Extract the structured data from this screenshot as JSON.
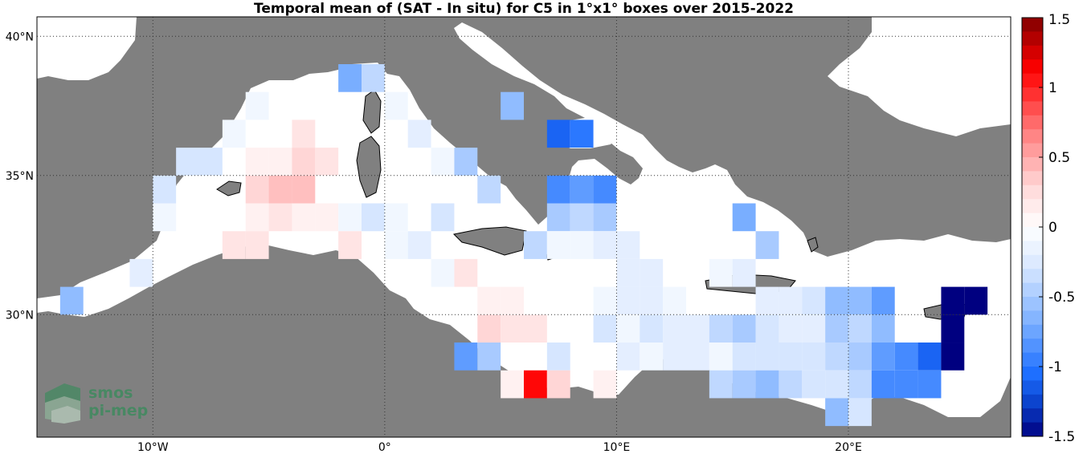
{
  "title": "Temporal mean of (SAT - In situ) for C5 in 1°x1° boxes over 2015-2022",
  "map": {
    "lon_range": [
      -15,
      27
    ],
    "lat_range": [
      25.6,
      40.7
    ],
    "lon_ticks": [
      {
        "value": -10,
        "label": "10°W"
      },
      {
        "value": 0,
        "label": "0°"
      },
      {
        "value": 10,
        "label": "10°E"
      },
      {
        "value": 20,
        "label": "20°E"
      }
    ],
    "lat_ticks": [
      {
        "value": 40,
        "label": "40°N"
      },
      {
        "value": 35,
        "label": "35°N"
      },
      {
        "value": 30,
        "label": "30°N"
      }
    ],
    "land_color": "#808080",
    "sea_color": "#ffffff"
  },
  "colorbar": {
    "min": -1.5,
    "max": 1.5,
    "tick_labels": [
      "1.5",
      "1",
      "0.5",
      "0",
      "-0.5",
      "-1",
      "-1.5"
    ],
    "tick_values": [
      1.5,
      1,
      0.5,
      0,
      -0.5,
      -1,
      -1.5
    ],
    "steps": 30,
    "colors": {
      "min": "#000080",
      "mid": "#ffffff",
      "max": "#800000"
    }
  },
  "logo": {
    "line1": "smos",
    "line2": "pi-mep"
  },
  "chart_data": {
    "type": "heatmap",
    "title": "Temporal mean of (SAT - In situ) for C5 in 1°x1° boxes over 2015-2022",
    "xlabel": "",
    "ylabel": "",
    "grid": "dotted at 10° lon / 5° lat",
    "boxes": [
      {
        "lon": -2,
        "lat": 38,
        "value": -0.7
      },
      {
        "lon": -1,
        "lat": 38,
        "value": -0.4
      },
      {
        "lon": -6,
        "lat": 37,
        "value": -0.1
      },
      {
        "lon": 0,
        "lat": 37,
        "value": -0.1
      },
      {
        "lon": 5,
        "lat": 37,
        "value": -0.6
      },
      {
        "lon": -7,
        "lat": 36,
        "value": -0.1
      },
      {
        "lon": -4,
        "lat": 36,
        "value": 0.2
      },
      {
        "lon": 1,
        "lat": 36,
        "value": -0.2
      },
      {
        "lon": 7,
        "lat": 36,
        "value": -1.1
      },
      {
        "lon": 8,
        "lat": 36,
        "value": -1.0
      },
      {
        "lon": -9,
        "lat": 35,
        "value": -0.3
      },
      {
        "lon": -8,
        "lat": 35,
        "value": -0.3
      },
      {
        "lon": -6,
        "lat": 35,
        "value": 0.1
      },
      {
        "lon": -5,
        "lat": 35,
        "value": 0.1
      },
      {
        "lon": -4,
        "lat": 35,
        "value": 0.3
      },
      {
        "lon": -3,
        "lat": 35,
        "value": 0.2
      },
      {
        "lon": 2,
        "lat": 35,
        "value": -0.1
      },
      {
        "lon": 3,
        "lat": 35,
        "value": -0.5
      },
      {
        "lon": -10,
        "lat": 34,
        "value": -0.3
      },
      {
        "lon": -6,
        "lat": 34,
        "value": 0.3
      },
      {
        "lon": -5,
        "lat": 34,
        "value": 0.4
      },
      {
        "lon": -4,
        "lat": 34,
        "value": 0.4
      },
      {
        "lon": 4,
        "lat": 34,
        "value": -0.4
      },
      {
        "lon": 7,
        "lat": 34,
        "value": -0.9
      },
      {
        "lon": 8,
        "lat": 34,
        "value": -0.8
      },
      {
        "lon": 9,
        "lat": 34,
        "value": -0.9
      },
      {
        "lon": -10,
        "lat": 33,
        "value": -0.1
      },
      {
        "lon": -6,
        "lat": 33,
        "value": 0.1
      },
      {
        "lon": -5,
        "lat": 33,
        "value": 0.2
      },
      {
        "lon": -4,
        "lat": 33,
        "value": 0.1
      },
      {
        "lon": -3,
        "lat": 33,
        "value": 0.1
      },
      {
        "lon": -2,
        "lat": 33,
        "value": -0.1
      },
      {
        "lon": -1,
        "lat": 33,
        "value": -0.3
      },
      {
        "lon": 0,
        "lat": 33,
        "value": -0.1
      },
      {
        "lon": 2,
        "lat": 33,
        "value": -0.3
      },
      {
        "lon": 7,
        "lat": 33,
        "value": -0.5
      },
      {
        "lon": 8,
        "lat": 33,
        "value": -0.4
      },
      {
        "lon": 9,
        "lat": 33,
        "value": -0.5
      },
      {
        "lon": 15,
        "lat": 33,
        "value": -0.7
      },
      {
        "lon": -7,
        "lat": 32,
        "value": 0.2
      },
      {
        "lon": -6,
        "lat": 32,
        "value": 0.2
      },
      {
        "lon": -2,
        "lat": 32,
        "value": 0.2
      },
      {
        "lon": 0,
        "lat": 32,
        "value": -0.1
      },
      {
        "lon": 1,
        "lat": 32,
        "value": -0.2
      },
      {
        "lon": 6,
        "lat": 32,
        "value": -0.4
      },
      {
        "lon": 7,
        "lat": 32,
        "value": -0.1
      },
      {
        "lon": 8,
        "lat": 32,
        "value": -0.1
      },
      {
        "lon": 9,
        "lat": 32,
        "value": -0.2
      },
      {
        "lon": 10,
        "lat": 32,
        "value": -0.2
      },
      {
        "lon": 16,
        "lat": 32,
        "value": -0.5
      },
      {
        "lon": -11,
        "lat": 31,
        "value": -0.2
      },
      {
        "lon": 2,
        "lat": 31,
        "value": -0.1
      },
      {
        "lon": 3,
        "lat": 31,
        "value": 0.2
      },
      {
        "lon": 10,
        "lat": 31,
        "value": -0.2
      },
      {
        "lon": 11,
        "lat": 31,
        "value": -0.2
      },
      {
        "lon": 14,
        "lat": 31,
        "value": -0.1
      },
      {
        "lon": 15,
        "lat": 31,
        "value": -0.2
      },
      {
        "lon": -14,
        "lat": 30,
        "value": -0.6
      },
      {
        "lon": 4,
        "lat": 30,
        "value": 0.1
      },
      {
        "lon": 5,
        "lat": 30,
        "value": 0.1
      },
      {
        "lon": 9,
        "lat": 30,
        "value": -0.1
      },
      {
        "lon": 10,
        "lat": 30,
        "value": -0.2
      },
      {
        "lon": 11,
        "lat": 30,
        "value": -0.2
      },
      {
        "lon": 12,
        "lat": 30,
        "value": -0.1
      },
      {
        "lon": 16,
        "lat": 30,
        "value": -0.2
      },
      {
        "lon": 17,
        "lat": 30,
        "value": -0.2
      },
      {
        "lon": 18,
        "lat": 30,
        "value": -0.3
      },
      {
        "lon": 19,
        "lat": 30,
        "value": -0.6
      },
      {
        "lon": 20,
        "lat": 30,
        "value": -0.6
      },
      {
        "lon": 21,
        "lat": 30,
        "value": -0.8
      },
      {
        "lon": 24,
        "lat": 30,
        "value": -1.5
      },
      {
        "lon": 25,
        "lat": 30,
        "value": -1.5
      },
      {
        "lon": 4,
        "lat": 29,
        "value": 0.3
      },
      {
        "lon": 5,
        "lat": 29,
        "value": 0.2
      },
      {
        "lon": 6,
        "lat": 29,
        "value": 0.2
      },
      {
        "lon": 9,
        "lat": 29,
        "value": -0.3
      },
      {
        "lon": 10,
        "lat": 29,
        "value": -0.1
      },
      {
        "lon": 11,
        "lat": 29,
        "value": -0.3
      },
      {
        "lon": 12,
        "lat": 29,
        "value": -0.2
      },
      {
        "lon": 13,
        "lat": 29,
        "value": -0.2
      },
      {
        "lon": 14,
        "lat": 29,
        "value": -0.4
      },
      {
        "lon": 15,
        "lat": 29,
        "value": -0.5
      },
      {
        "lon": 16,
        "lat": 29,
        "value": -0.3
      },
      {
        "lon": 17,
        "lat": 29,
        "value": -0.2
      },
      {
        "lon": 18,
        "lat": 29,
        "value": -0.2
      },
      {
        "lon": 19,
        "lat": 29,
        "value": -0.5
      },
      {
        "lon": 20,
        "lat": 29,
        "value": -0.4
      },
      {
        "lon": 21,
        "lat": 29,
        "value": -0.6
      },
      {
        "lon": 24,
        "lat": 29,
        "value": -1.5
      },
      {
        "lon": 3,
        "lat": 28,
        "value": -0.8
      },
      {
        "lon": 4,
        "lat": 28,
        "value": -0.5
      },
      {
        "lon": 7,
        "lat": 28,
        "value": -0.3
      },
      {
        "lon": 10,
        "lat": 28,
        "value": -0.2
      },
      {
        "lon": 11,
        "lat": 28,
        "value": -0.1
      },
      {
        "lon": 12,
        "lat": 28,
        "value": -0.2
      },
      {
        "lon": 13,
        "lat": 28,
        "value": -0.2
      },
      {
        "lon": 14,
        "lat": 28,
        "value": -0.1
      },
      {
        "lon": 15,
        "lat": 28,
        "value": -0.3
      },
      {
        "lon": 16,
        "lat": 28,
        "value": -0.3
      },
      {
        "lon": 17,
        "lat": 28,
        "value": -0.3
      },
      {
        "lon": 18,
        "lat": 28,
        "value": -0.3
      },
      {
        "lon": 19,
        "lat": 28,
        "value": -0.4
      },
      {
        "lon": 20,
        "lat": 28,
        "value": -0.5
      },
      {
        "lon": 21,
        "lat": 28,
        "value": -0.8
      },
      {
        "lon": 22,
        "lat": 28,
        "value": -0.9
      },
      {
        "lon": 23,
        "lat": 28,
        "value": -1.1
      },
      {
        "lon": 24,
        "lat": 28,
        "value": -1.5
      },
      {
        "lon": 5,
        "lat": 27,
        "value": 0.1
      },
      {
        "lon": 6,
        "lat": 27,
        "value": 1.1
      },
      {
        "lon": 7,
        "lat": 27,
        "value": 0.3
      },
      {
        "lon": 9,
        "lat": 27,
        "value": 0.1
      },
      {
        "lon": 14,
        "lat": 27,
        "value": -0.4
      },
      {
        "lon": 15,
        "lat": 27,
        "value": -0.5
      },
      {
        "lon": 16,
        "lat": 27,
        "value": -0.6
      },
      {
        "lon": 17,
        "lat": 27,
        "value": -0.4
      },
      {
        "lon": 18,
        "lat": 27,
        "value": -0.3
      },
      {
        "lon": 19,
        "lat": 27,
        "value": -0.3
      },
      {
        "lon": 20,
        "lat": 27,
        "value": -0.4
      },
      {
        "lon": 21,
        "lat": 27,
        "value": -0.9
      },
      {
        "lon": 22,
        "lat": 27,
        "value": -0.9
      },
      {
        "lon": 23,
        "lat": 27,
        "value": -0.9
      },
      {
        "lon": 19,
        "lat": 26,
        "value": -0.6
      },
      {
        "lon": 20,
        "lat": 26,
        "value": -0.3
      }
    ]
  }
}
